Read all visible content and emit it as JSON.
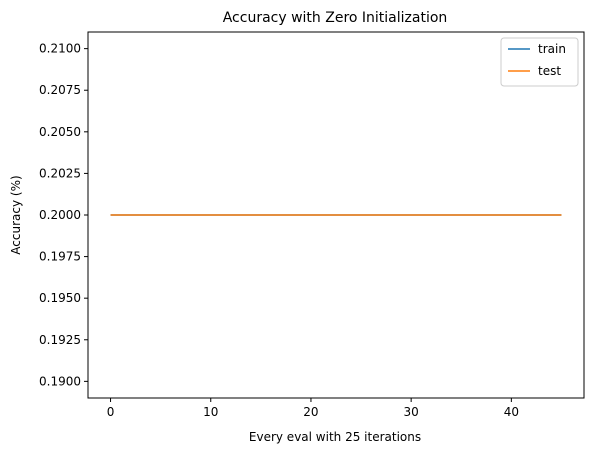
{
  "chart_data": {
    "type": "line",
    "title": "Accuracy with Zero Initialization",
    "xlabel": "Every eval with 25 iterations",
    "ylabel": "Accuracy (%)",
    "xlim": [
      -2.25,
      47.25
    ],
    "ylim": [
      0.189,
      0.211
    ],
    "xticks": [
      0,
      10,
      20,
      30,
      40
    ],
    "xtick_labels": [
      "0",
      "10",
      "20",
      "30",
      "40"
    ],
    "yticks": [
      0.19,
      0.1925,
      0.195,
      0.1975,
      0.2,
      0.2025,
      0.205,
      0.2075,
      0.21
    ],
    "ytick_labels": [
      "0.1900",
      "0.1925",
      "0.1950",
      "0.1975",
      "0.2000",
      "0.2025",
      "0.2050",
      "0.2075",
      "0.2100"
    ],
    "grid": false,
    "legend_position": "top-right",
    "series": [
      {
        "name": "train",
        "color": "#1f77b4",
        "x": [
          0,
          45
        ],
        "y": [
          0.2,
          0.2
        ]
      },
      {
        "name": "test",
        "color": "#ff7f0e",
        "x": [
          0,
          45
        ],
        "y": [
          0.2,
          0.2
        ]
      }
    ]
  }
}
